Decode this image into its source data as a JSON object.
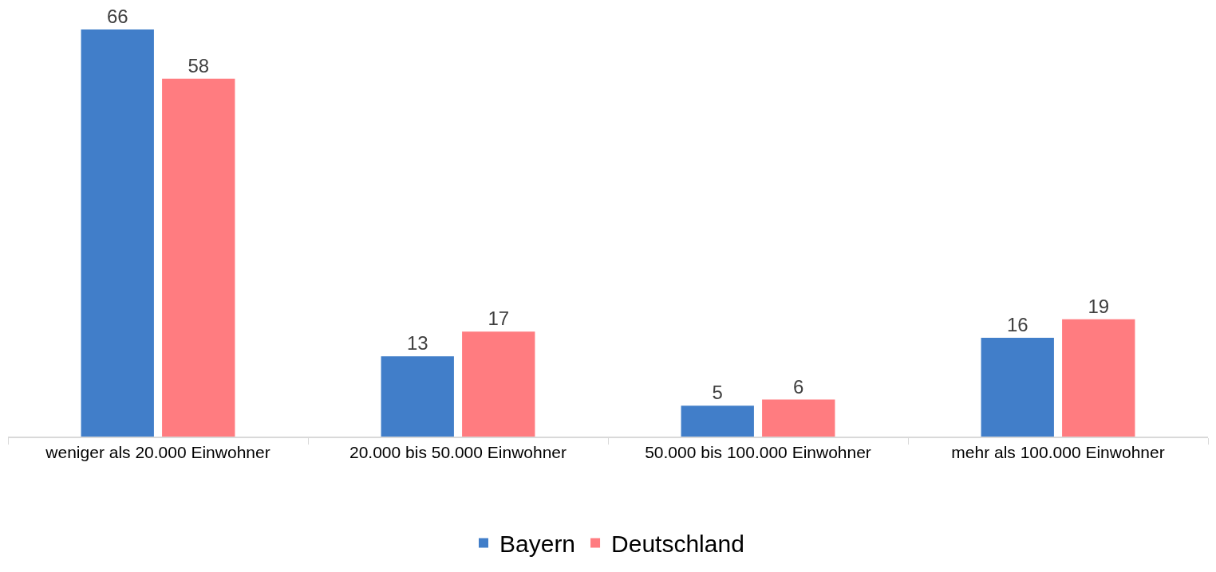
{
  "chart_data": {
    "type": "bar",
    "categories": [
      "weniger als 20.000 Einwohner",
      "20.000 bis 50.000 Einwohner",
      "50.000 bis 100.000 Einwohner",
      "mehr als 100.000 Einwohner"
    ],
    "series": [
      {
        "name": "Bayern",
        "color": "#417ec9",
        "values": [
          66,
          13,
          5,
          16
        ]
      },
      {
        "name": "Deutschland",
        "color": "#ff7c80",
        "values": [
          58,
          17,
          6,
          19
        ]
      }
    ],
    "data_labels": true,
    "legend": "bottom"
  }
}
